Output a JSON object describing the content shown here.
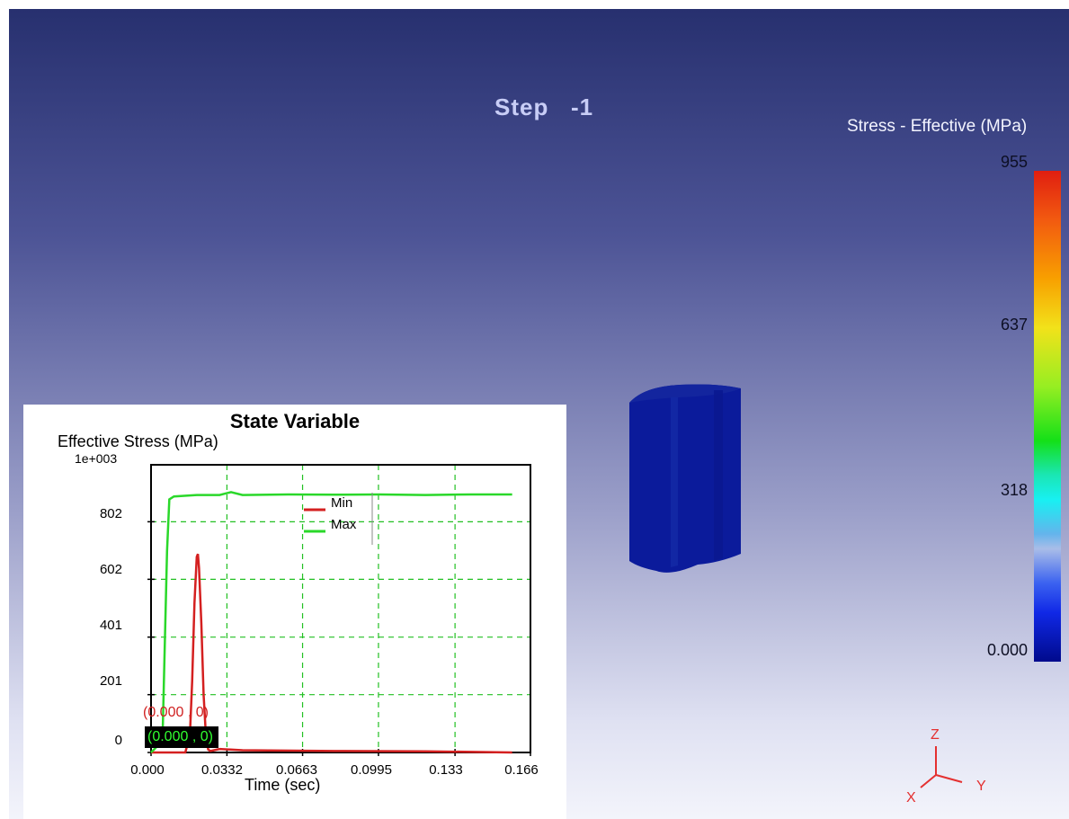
{
  "scene": {
    "step_label": "Step   -1"
  },
  "colorbar": {
    "title": "Stress - Effective (MPa)",
    "ticks": [
      "955",
      "637",
      "318",
      "0.000"
    ]
  },
  "chart_data": {
    "type": "line",
    "title": "State Variable",
    "ylabel": "Effective Stress (MPa)",
    "xlabel": "Time (sec)",
    "y_exponent_label": "1e+003",
    "yticks": [
      "802",
      "602",
      "401",
      "201",
      "0"
    ],
    "xticks": [
      "0.000",
      "0.0332",
      "0.0663",
      "0.0995",
      "0.133",
      "0.166"
    ],
    "ylim": [
      0,
      1000
    ],
    "xlim": [
      0,
      0.166
    ],
    "grid": true,
    "legend_position": "top-center",
    "series": [
      {
        "name": "Min",
        "color": "#d42020",
        "x": [
          0.0,
          0.015,
          0.017,
          0.018,
          0.019,
          0.02,
          0.0205,
          0.021,
          0.022,
          0.023,
          0.024,
          0.025,
          0.026,
          0.03,
          0.04,
          0.08,
          0.12,
          0.158
        ],
        "y": [
          0,
          0,
          60,
          250,
          520,
          680,
          690,
          640,
          450,
          200,
          60,
          10,
          5,
          12,
          8,
          5,
          4,
          0
        ]
      },
      {
        "name": "Max",
        "color": "#2ad82a",
        "x": [
          0.0,
          0.005,
          0.007,
          0.008,
          0.01,
          0.02,
          0.03,
          0.035,
          0.04,
          0.06,
          0.08,
          0.1,
          0.12,
          0.14,
          0.158
        ],
        "y": [
          0,
          40,
          700,
          880,
          890,
          895,
          895,
          905,
          895,
          897,
          896,
          897,
          895,
          897,
          897
        ]
      }
    ]
  },
  "cursor_readout": {
    "red": "(0.000 , 0)",
    "green": "(0.000 , 0)"
  },
  "triad": {
    "z": "Z",
    "y": "Y",
    "x": "X"
  }
}
